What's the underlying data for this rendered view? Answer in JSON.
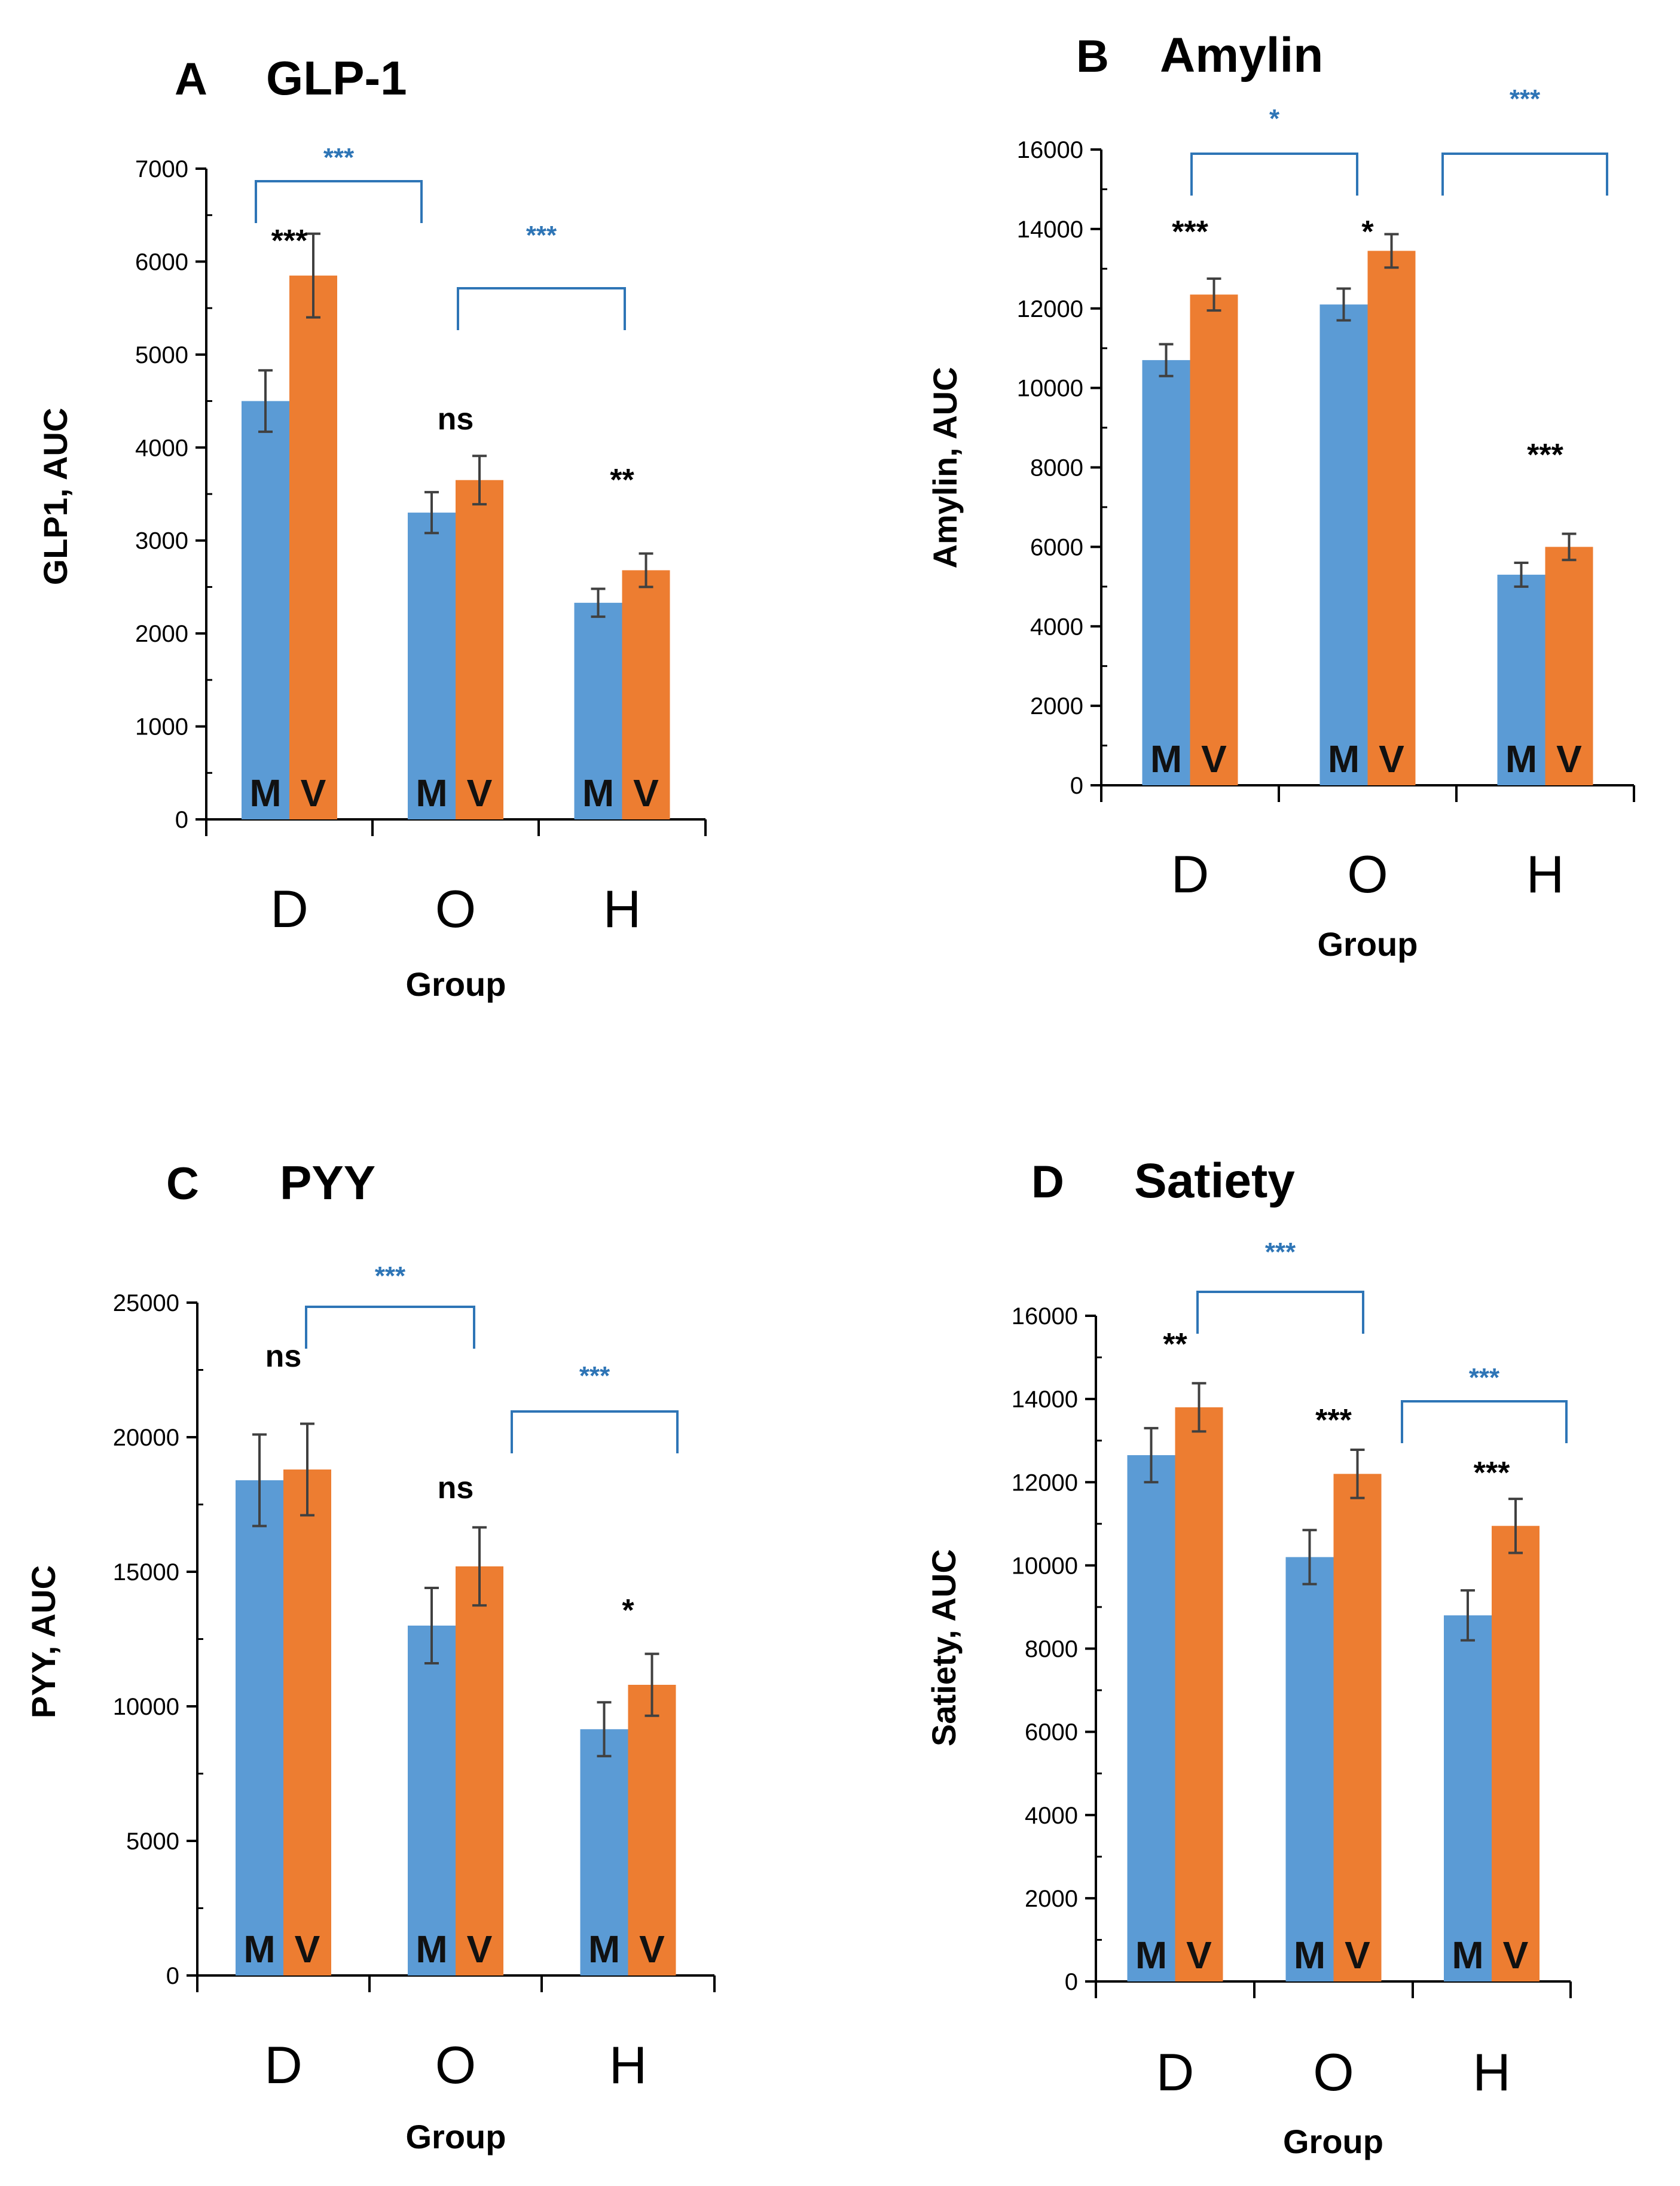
{
  "colors": {
    "M": "#5b9bd5",
    "V": "#ed7d31",
    "bracket": "#2e75b6",
    "axis": "#000000"
  },
  "chart_data": [
    {
      "type": "bar",
      "panel": "A",
      "title": "GLP-1",
      "xlabel": "Group",
      "ylabel": "GLP1, AUC",
      "ylim": [
        0,
        7000
      ],
      "yticks": [
        "0",
        "1000",
        "2000",
        "3000",
        "4000",
        "5000",
        "6000",
        "7000"
      ],
      "categories": [
        "D",
        "O",
        "H"
      ],
      "series_letters": [
        "M",
        "V"
      ],
      "series": [
        {
          "name": "M",
          "values": [
            4500,
            3300,
            2330
          ],
          "errors": [
            330,
            220,
            150
          ]
        },
        {
          "name": "V",
          "values": [
            5850,
            3650,
            2680
          ],
          "errors": [
            450,
            260,
            180
          ]
        }
      ],
      "group_sig": [
        "***",
        "ns",
        "**"
      ],
      "brackets": [
        {
          "from": 0,
          "to": 1,
          "label": "***"
        },
        {
          "from": 1,
          "to": 2,
          "label": "***"
        }
      ]
    },
    {
      "type": "bar",
      "panel": "B",
      "title": "Amylin",
      "xlabel": "Group",
      "ylabel": "Amylin, AUC",
      "ylim": [
        0,
        16000
      ],
      "yticks": [
        "0",
        "2000",
        "4000",
        "6000",
        "8000",
        "10000",
        "12000",
        "14000",
        "16000"
      ],
      "categories": [
        "D",
        "O",
        "H"
      ],
      "series_letters": [
        "M",
        "V"
      ],
      "series": [
        {
          "name": "M",
          "values": [
            10700,
            12100,
            5300
          ],
          "errors": [
            400,
            400,
            300
          ]
        },
        {
          "name": "V",
          "values": [
            12350,
            13450,
            6000
          ],
          "errors": [
            400,
            420,
            330
          ]
        }
      ],
      "group_sig": [
        "***",
        "*",
        "***"
      ],
      "brackets": [
        {
          "from": 0,
          "to": 1,
          "label": "*"
        },
        {
          "from": 1.5,
          "to": 2.5,
          "label": "***"
        }
      ]
    },
    {
      "type": "bar",
      "panel": "C",
      "title": "PYY",
      "xlabel": "Group",
      "ylabel": "PYY, AUC",
      "ylim": [
        0,
        25000
      ],
      "yticks": [
        "0",
        "5000",
        "10000",
        "15000",
        "20000",
        "25000"
      ],
      "categories": [
        "D",
        "O",
        "H"
      ],
      "series_letters": [
        "M",
        "V"
      ],
      "series": [
        {
          "name": "M",
          "values": [
            18400,
            13000,
            9150
          ],
          "errors": [
            1700,
            1400,
            1000
          ]
        },
        {
          "name": "V",
          "values": [
            18800,
            15200,
            10800
          ],
          "errors": [
            1700,
            1450,
            1150
          ]
        }
      ],
      "group_sig": [
        "ns",
        "ns",
        "*"
      ],
      "brackets": [
        {
          "from": 0,
          "to": 1,
          "label": "***"
        },
        {
          "from": 1,
          "to": 2,
          "label": "***"
        }
      ]
    },
    {
      "type": "bar",
      "panel": "D",
      "title": "Satiety",
      "xlabel": "Group",
      "ylabel": "Satiety, AUC",
      "ylim": [
        0,
        16000
      ],
      "yticks": [
        "0",
        "2000",
        "4000",
        "6000",
        "8000",
        "10000",
        "12000",
        "14000",
        "16000"
      ],
      "categories": [
        "D",
        "O",
        "H"
      ],
      "series_letters": [
        "M",
        "V"
      ],
      "series": [
        {
          "name": "M",
          "values": [
            12650,
            10200,
            8800
          ],
          "errors": [
            650,
            650,
            600
          ]
        },
        {
          "name": "V",
          "values": [
            13800,
            12200,
            10950
          ],
          "errors": [
            580,
            580,
            650
          ]
        }
      ],
      "group_sig": [
        "**",
        "***",
        "***"
      ],
      "brackets": [
        {
          "from": 0,
          "to": 1,
          "label": "***"
        },
        {
          "from": 1.5,
          "to": 2.5,
          "label": "***"
        }
      ]
    }
  ]
}
